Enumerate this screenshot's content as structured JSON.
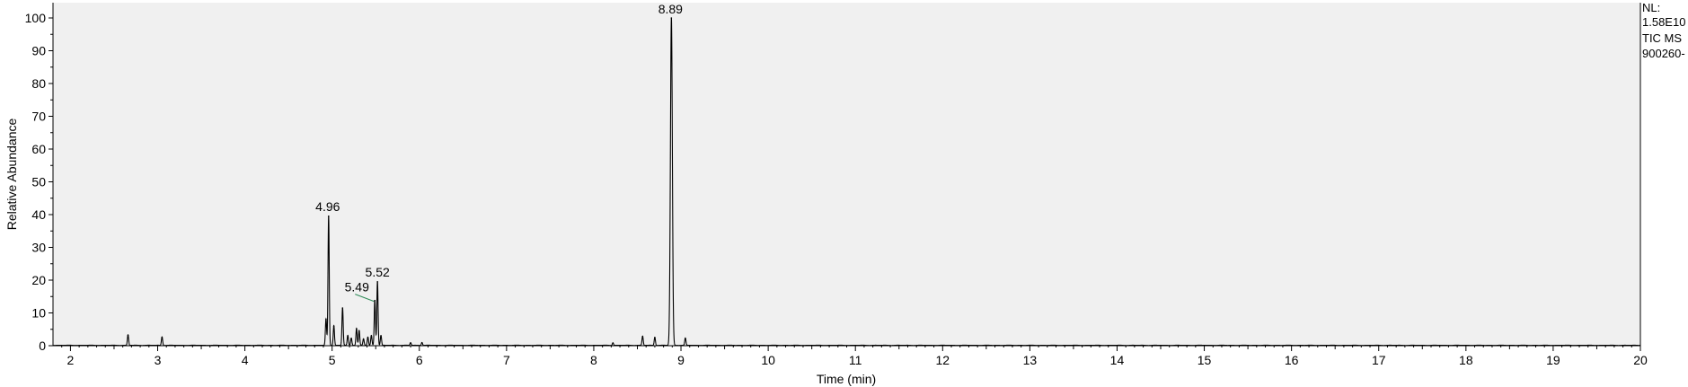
{
  "chart_data": {
    "type": "line",
    "xlabel": "Time (min)",
    "ylabel": "Relative Abundance",
    "xlim": [
      1.8,
      20
    ],
    "ylim": [
      0,
      100
    ],
    "x_ticks": [
      2,
      3,
      4,
      5,
      6,
      7,
      8,
      9,
      10,
      11,
      12,
      13,
      14,
      15,
      16,
      17,
      18,
      19,
      20
    ],
    "y_ticks": [
      0,
      10,
      20,
      30,
      40,
      50,
      60,
      70,
      80,
      90,
      100
    ],
    "grid": false,
    "background": "#f0f0f0",
    "trace_color": "#000000",
    "annotation_line_color": "#2e8b57",
    "peaks": [
      {
        "x": 2.66,
        "y": 3.2
      },
      {
        "x": 3.05,
        "y": 2.6
      },
      {
        "x": 4.93,
        "y": 8
      },
      {
        "x": 4.96,
        "y": 39.5
      },
      {
        "x": 5.02,
        "y": 6
      },
      {
        "x": 5.12,
        "y": 11.5
      },
      {
        "x": 5.18,
        "y": 3
      },
      {
        "x": 5.22,
        "y": 2.2
      },
      {
        "x": 5.28,
        "y": 5.2
      },
      {
        "x": 5.31,
        "y": 4.5
      },
      {
        "x": 5.36,
        "y": 2
      },
      {
        "x": 5.41,
        "y": 2.5
      },
      {
        "x": 5.45,
        "y": 3
      },
      {
        "x": 5.49,
        "y": 13.8
      },
      {
        "x": 5.52,
        "y": 19.5
      },
      {
        "x": 5.56,
        "y": 3
      },
      {
        "x": 5.9,
        "y": 0.8
      },
      {
        "x": 6.03,
        "y": 0.9
      },
      {
        "x": 8.22,
        "y": 0.8
      },
      {
        "x": 8.56,
        "y": 2.8
      },
      {
        "x": 8.7,
        "y": 2.5
      },
      {
        "x": 8.89,
        "y": 100
      },
      {
        "x": 9.05,
        "y": 2.2
      }
    ],
    "peak_labels": [
      {
        "text": "4.96",
        "x": 4.96,
        "y": 39.5
      },
      {
        "text": "5.49",
        "x": 5.49,
        "y": 13.8
      },
      {
        "text": "5.52",
        "x": 5.52,
        "y": 19.5
      },
      {
        "text": "8.89",
        "x": 8.89,
        "y": 100
      }
    ],
    "info_lines": [
      "NL:",
      "1.58E10",
      "TIC  MS",
      "900260-"
    ]
  }
}
